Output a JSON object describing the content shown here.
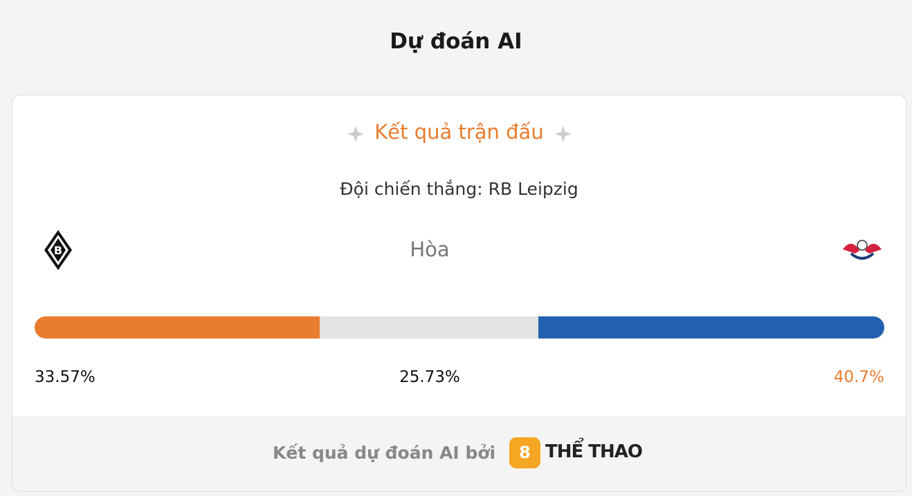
{
  "header": {
    "title": "Dự đoán AI"
  },
  "card": {
    "heading": "Kết quả trận đấu",
    "winner": "Đội chiến thắng: RB Leipzig",
    "draw_label": "Hòa",
    "segments": [
      {
        "value": 33.57,
        "label": "33.57%",
        "color": "#e97c2e",
        "label_color": "#111111"
      },
      {
        "value": 25.73,
        "label": "25.73%",
        "color": "#e3e3e3",
        "label_color": "#111111"
      },
      {
        "value": 40.7,
        "label": "40.7%",
        "color": "#2360b0",
        "label_color": "#e97c2e"
      }
    ]
  },
  "footer": {
    "text": "Kết quả dự đoán AI bởi",
    "brand_logo": "8",
    "brand": "THỂ THAO"
  }
}
